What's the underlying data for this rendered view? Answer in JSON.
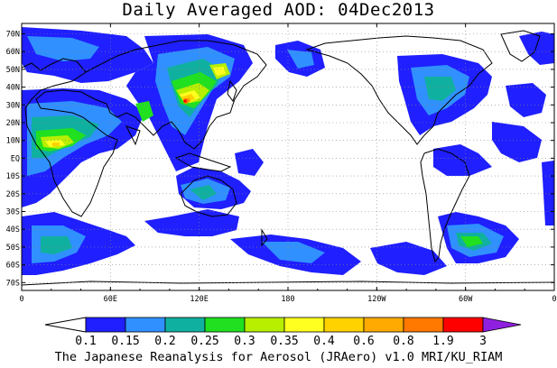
{
  "title": "Daily Averaged AOD: 04Dec2013",
  "footer": "The Japanese Reanalysis for Aerosol (JRAero) v1.0 MRI/KU_RIAM",
  "map": {
    "y_ticks": [
      "70N",
      "60N",
      "50N",
      "40N",
      "30N",
      "20N",
      "10N",
      "EQ",
      "10S",
      "20S",
      "30S",
      "40S",
      "50S",
      "60S",
      "70S"
    ],
    "x_ticks": [
      "0",
      "60E",
      "120E",
      "180",
      "120W",
      "60W",
      "0"
    ]
  },
  "colorbar": {
    "labels": [
      "0.1",
      "0.15",
      "0.2",
      "0.25",
      "0.3",
      "0.35",
      "0.4",
      "0.6",
      "0.8",
      "1.9",
      "3"
    ],
    "colors": [
      "#1f1fff",
      "#3090ff",
      "#10b0a0",
      "#20e020",
      "#b8ee00",
      "#ffff20",
      "#ffd200",
      "#ffaa00",
      "#ff7800",
      "#ff0000",
      "#9020e0"
    ]
  }
}
